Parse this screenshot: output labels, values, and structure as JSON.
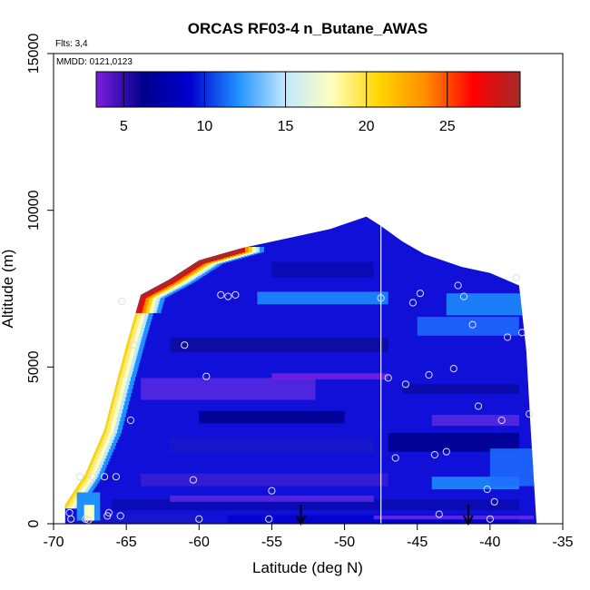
{
  "chart_data": {
    "type": "heatmap",
    "title": "ORCAS RF03-4 n_Butane_AWAS",
    "xlabel": "Latitude (deg N)",
    "ylabel": "Altitude (m)",
    "xlim": [
      -70,
      -35
    ],
    "ylim": [
      0,
      15000
    ],
    "x_ticks": [
      "-70",
      "-65",
      "-60",
      "-55",
      "-50",
      "-45",
      "-40",
      "-35"
    ],
    "x_tick_values": [
      -70,
      -65,
      -60,
      -55,
      -50,
      -45,
      -40,
      -35
    ],
    "y_ticks": [
      "0",
      "5000",
      "10000",
      "15000"
    ],
    "y_tick_values": [
      0,
      5000,
      10000,
      15000
    ],
    "annotations": {
      "flights": "Flts: 3,4",
      "dates": "MMDD: 0121,0123"
    },
    "colorbar": {
      "range": [
        3.3,
        29.5
      ],
      "ticks": [
        "5",
        "10",
        "15",
        "20",
        "25"
      ],
      "tick_values": [
        5,
        10,
        15,
        20,
        25
      ],
      "colors": [
        "#7a1fe0",
        "#00008b",
        "#0000d0",
        "#1e90ff",
        "#bfe8ff",
        "#ffffc0",
        "#ffd700",
        "#ff8c00",
        "#ff0000",
        "#a52a2a"
      ]
    },
    "domain_top": [
      [
        -69.2,
        600
      ],
      [
        -67.8,
        1600
      ],
      [
        -66.5,
        3000
      ],
      [
        -65.5,
        4800
      ],
      [
        -64.8,
        6000
      ],
      [
        -64,
        7300
      ],
      [
        -62,
        7800
      ],
      [
        -60,
        8400
      ],
      [
        -57,
        8800
      ],
      [
        -54,
        9100
      ],
      [
        -51,
        9400
      ],
      [
        -48.5,
        9800
      ],
      [
        -47.5,
        9500
      ],
      [
        -46,
        9000
      ],
      [
        -44.5,
        8600
      ],
      [
        -42,
        8200
      ],
      [
        -40,
        8000
      ],
      [
        -38,
        7600
      ],
      [
        -37.5,
        5500
      ],
      [
        -37.2,
        3000
      ],
      [
        -37,
        1500
      ],
      [
        -36.8,
        0
      ]
    ],
    "sample_points": [
      [
        -68.9,
        350
      ],
      [
        -68.8,
        150
      ],
      [
        -68.2,
        1500
      ],
      [
        -67.8,
        150
      ],
      [
        -67.6,
        120
      ],
      [
        -67.3,
        1500
      ],
      [
        -66.5,
        1500
      ],
      [
        -66.3,
        250
      ],
      [
        -66.2,
        350
      ],
      [
        -65.7,
        1500
      ],
      [
        -65.4,
        250
      ],
      [
        -65.3,
        7100
      ],
      [
        -64.7,
        3300
      ],
      [
        -64.5,
        5700
      ],
      [
        -61,
        5700
      ],
      [
        -60.4,
        1400
      ],
      [
        -60,
        150
      ],
      [
        -59.5,
        4700
      ],
      [
        -58.5,
        7300
      ],
      [
        -58,
        7250
      ],
      [
        -57.5,
        7300
      ],
      [
        -55.2,
        150
      ],
      [
        -55,
        1050
      ],
      [
        -47.5,
        7200
      ],
      [
        -47,
        4650
      ],
      [
        -46.5,
        2100
      ],
      [
        -45.8,
        4450
      ],
      [
        -45.3,
        7050
      ],
      [
        -44.8,
        7350
      ],
      [
        -44.2,
        4750
      ],
      [
        -43.8,
        2200
      ],
      [
        -43.5,
        300
      ],
      [
        -43,
        2300
      ],
      [
        -42.5,
        4950
      ],
      [
        -42.2,
        7600
      ],
      [
        -41.8,
        7250
      ],
      [
        -41.2,
        6350
      ],
      [
        -40.8,
        3750
      ],
      [
        -40.2,
        1100
      ],
      [
        -40,
        150
      ],
      [
        -39.7,
        700
      ],
      [
        -39.2,
        3300
      ],
      [
        -38.8,
        5950
      ],
      [
        -38.2,
        7850
      ],
      [
        -37.8,
        6100
      ],
      [
        -37.3,
        3500
      ]
    ],
    "profile_line_x": -47.5,
    "arrows_x": [
      -53,
      -41.5
    ],
    "grid": false
  }
}
